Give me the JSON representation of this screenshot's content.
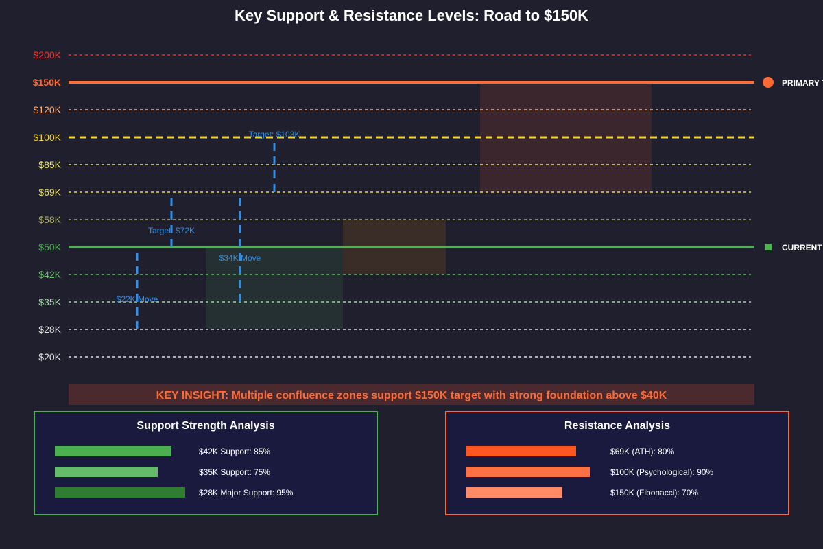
{
  "chart_data": {
    "type": "level-chart",
    "title": "Key Support & Resistance Levels: Road to $150K",
    "levels": [
      {
        "label": "$200K",
        "value": 200000,
        "color": "#e53935",
        "style": "dotted"
      },
      {
        "label": "$150K",
        "value": 150000,
        "color": "#ff6b35",
        "style": "solid",
        "emphasis": "primary"
      },
      {
        "label": "$120K",
        "value": 120000,
        "color": "#ffb074",
        "style": "dotted"
      },
      {
        "label": "$100K",
        "value": 100000,
        "color": "#f2d53c",
        "style": "dashed",
        "emphasis": "major"
      },
      {
        "label": "$85K",
        "value": 85000,
        "color": "#ecea6a",
        "style": "dotted"
      },
      {
        "label": "$69K",
        "value": 69000,
        "color": "#e2d968",
        "style": "dotted"
      },
      {
        "label": "$58K",
        "value": 58000,
        "color": "#b0b260",
        "style": "dotted"
      },
      {
        "label": "$50K",
        "value": 50000,
        "color": "#4caf50",
        "style": "solid",
        "emphasis": "current"
      },
      {
        "label": "$42K",
        "value": 42000,
        "color": "#66bb6a",
        "style": "dotted"
      },
      {
        "label": "$35K",
        "value": 35000,
        "color": "#a5d6a7",
        "style": "dotted"
      },
      {
        "label": "$28K",
        "value": 28000,
        "color": "#e0e0e0",
        "style": "dotted"
      },
      {
        "label": "$20K",
        "value": 20000,
        "color": "#e0e0e0",
        "style": "dotted"
      }
    ],
    "moves": [
      {
        "from": "$28K",
        "to": "$50K",
        "label": "$22K Move"
      },
      {
        "from": "$50K",
        "to": "$69K",
        "label": "Target: $72K"
      },
      {
        "from": "$35K",
        "to": "$69K",
        "label": "$34K Move"
      },
      {
        "from": "$69K",
        "to": "$100K",
        "label": "Target: $103K"
      }
    ],
    "zones": [
      {
        "from": "$28K",
        "to": "$50K",
        "color": "#4caf50"
      },
      {
        "from": "$42K",
        "to": "$58K",
        "color": "#ff9800"
      },
      {
        "from": "$69K",
        "to": "$150K",
        "color": "#ff5722"
      }
    ],
    "markers": [
      {
        "level": "$150K",
        "label": "PRIMARY T",
        "shape": "circle",
        "color": "#ff6b35"
      },
      {
        "level": "$50K",
        "label": "CURRENT",
        "shape": "square",
        "color": "#4caf50"
      }
    ],
    "insight": "KEY INSIGHT: Multiple confluence zones support $150K target with strong foundation above $40K",
    "panels": [
      {
        "title": "Support Strength Analysis",
        "border": "#4caf50",
        "bars": [
          {
            "label": "$42K Support: 85%",
            "value": 85,
            "color": "#4caf50"
          },
          {
            "label": "$35K Support: 75%",
            "value": 75,
            "color": "#66bb6a"
          },
          {
            "label": "$28K Major Support: 95%",
            "value": 95,
            "color": "#2e7d32"
          }
        ]
      },
      {
        "title": "Resistance Analysis",
        "border": "#ff6b35",
        "bars": [
          {
            "label": "$69K (ATH): 80%",
            "value": 80,
            "color": "#ff5722"
          },
          {
            "label": "$100K (Psychological): 90%",
            "value": 90,
            "color": "#ff7043"
          },
          {
            "label": "$150K (Fibonacci): 70%",
            "value": 70,
            "color": "#ff8a65"
          }
        ]
      }
    ]
  }
}
